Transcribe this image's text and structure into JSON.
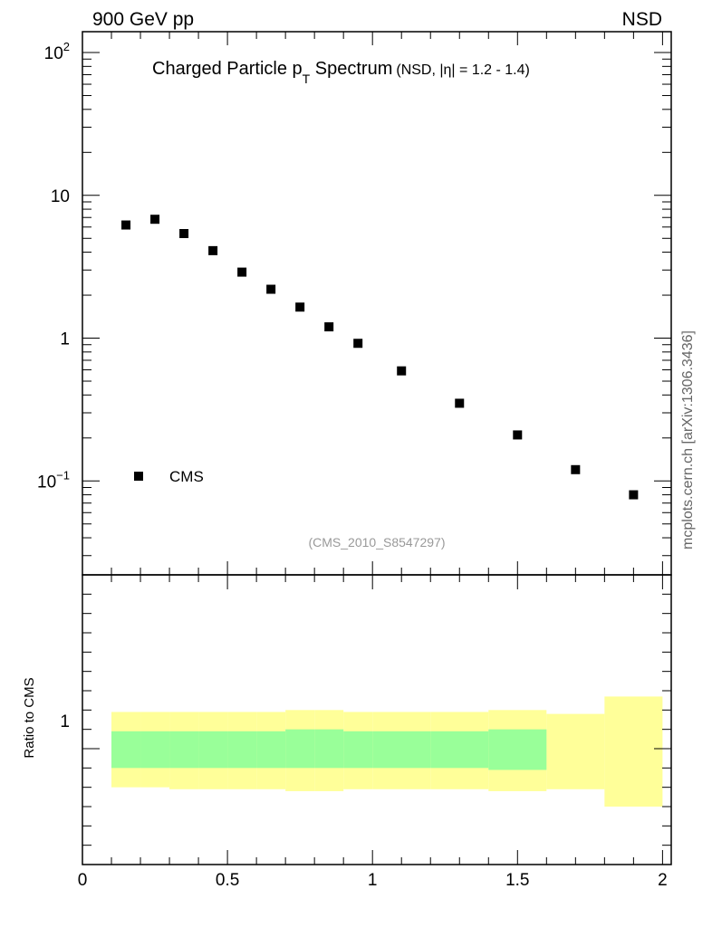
{
  "header": {
    "left": "900 GeV pp",
    "right": "NSD"
  },
  "side_label": "mcplots.cern.ch [arXiv:1306.3436]",
  "chart_data": [
    {
      "type": "scatter",
      "title": {
        "main": "Charged Particle p",
        "sub": "T",
        "rest": " Spectrum",
        "qualifier": "(NSD, |η| = 1.2 - 1.4)"
      },
      "analysis_id": "(CMS_2010_S8547297)",
      "yscale": "log",
      "ylim": [
        0.022,
        140
      ],
      "xlim": [
        0,
        2.03
      ],
      "ytick_labels": [
        {
          "value": 100,
          "base": "10",
          "exp": "2"
        },
        {
          "value": 10,
          "base": "10",
          "exp": ""
        },
        {
          "value": 1,
          "base": "1",
          "exp": ""
        },
        {
          "value": 0.1,
          "base": "10",
          "exp": "−1"
        }
      ],
      "legend": {
        "placement": "bottom-left",
        "entries": [
          "CMS"
        ]
      },
      "series": [
        {
          "name": "CMS",
          "color": "#000000",
          "x": [
            0.15,
            0.25,
            0.35,
            0.45,
            0.55,
            0.65,
            0.75,
            0.85,
            0.95,
            1.1,
            1.3,
            1.5,
            1.7,
            1.9
          ],
          "y": [
            6.2,
            6.8,
            5.4,
            4.1,
            2.9,
            2.2,
            1.65,
            1.2,
            0.92,
            0.59,
            0.35,
            0.21,
            0.12,
            0.08
          ]
        }
      ]
    },
    {
      "type": "area",
      "ylabel": "Ratio to CMS",
      "ytick_labels": [
        {
          "value": 1,
          "label": "1"
        }
      ],
      "ylim": [
        0.4,
        1.9
      ],
      "xlim": [
        0,
        2.03
      ],
      "xtick_labels": [
        {
          "value": 0,
          "label": "0"
        },
        {
          "value": 0.5,
          "label": "0.5"
        },
        {
          "value": 1,
          "label": "1"
        },
        {
          "value": 1.5,
          "label": "1.5"
        },
        {
          "value": 2,
          "label": "2"
        }
      ],
      "bands": [
        {
          "name": "total",
          "color": "#ffff99",
          "bins": [
            [
              0.1,
              0.2,
              0.8,
              1.19
            ],
            [
              0.2,
              0.3,
              0.8,
              1.19
            ],
            [
              0.3,
              0.4,
              0.79,
              1.19
            ],
            [
              0.4,
              0.5,
              0.79,
              1.19
            ],
            [
              0.5,
              0.6,
              0.79,
              1.19
            ],
            [
              0.6,
              0.7,
              0.79,
              1.19
            ],
            [
              0.7,
              0.8,
              0.78,
              1.2
            ],
            [
              0.8,
              0.9,
              0.78,
              1.2
            ],
            [
              0.9,
              1.0,
              0.79,
              1.19
            ],
            [
              1.0,
              1.2,
              0.79,
              1.19
            ],
            [
              1.2,
              1.4,
              0.79,
              1.19
            ],
            [
              1.4,
              1.6,
              0.78,
              1.2
            ],
            [
              1.6,
              1.8,
              0.79,
              1.18
            ],
            [
              1.8,
              2.0,
              0.7,
              1.27
            ]
          ]
        },
        {
          "name": "stat",
          "color": "#99ff99",
          "bins": [
            [
              0.1,
              0.2,
              0.9,
              1.09
            ],
            [
              0.2,
              0.3,
              0.9,
              1.09
            ],
            [
              0.3,
              0.4,
              0.9,
              1.09
            ],
            [
              0.4,
              0.5,
              0.9,
              1.09
            ],
            [
              0.5,
              0.6,
              0.9,
              1.09
            ],
            [
              0.6,
              0.7,
              0.9,
              1.09
            ],
            [
              0.7,
              0.8,
              0.9,
              1.1
            ],
            [
              0.8,
              0.9,
              0.9,
              1.1
            ],
            [
              0.9,
              1.0,
              0.9,
              1.09
            ],
            [
              1.0,
              1.2,
              0.9,
              1.09
            ],
            [
              1.2,
              1.4,
              0.9,
              1.09
            ],
            [
              1.4,
              1.6,
              0.89,
              1.1
            ]
          ]
        }
      ]
    }
  ]
}
